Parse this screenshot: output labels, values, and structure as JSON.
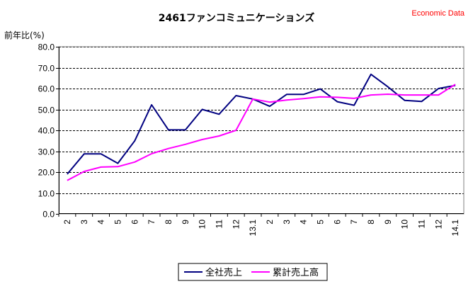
{
  "chart_data": {
    "type": "line",
    "title": "2461ファンコミュニケーションズ",
    "source_label": "Economic Data",
    "ylabel": "前年比(%)",
    "ylim": [
      0,
      80
    ],
    "yticks": [
      "0.0",
      "10.0",
      "20.0",
      "30.0",
      "40.0",
      "50.0",
      "60.0",
      "70.0",
      "80.0"
    ],
    "grid": true,
    "legend_position": "bottom",
    "categories": [
      "2",
      "3",
      "4",
      "5",
      "6",
      "7",
      "8",
      "9",
      "10",
      "11",
      "12",
      "13.1",
      "2",
      "3",
      "4",
      "5",
      "6",
      "7",
      "8",
      "9",
      "10",
      "11",
      "12",
      "14.1"
    ],
    "series": [
      {
        "name": "全社売上",
        "color": "#000080",
        "values": [
          19.0,
          28.7,
          28.7,
          24.2,
          35.0,
          52.2,
          40.2,
          40.2,
          50.0,
          47.7,
          56.6,
          55.0,
          51.5,
          57.2,
          57.2,
          59.8,
          53.7,
          52.0,
          66.8,
          60.8,
          54.3,
          53.8,
          60.0,
          61.5
        ]
      },
      {
        "name": "累計売上高",
        "color": "#ff00ff",
        "values": [
          16.0,
          20.3,
          22.4,
          22.6,
          24.8,
          28.8,
          31.3,
          33.3,
          35.6,
          37.3,
          40.0,
          55.0,
          53.5,
          54.5,
          55.2,
          56.0,
          55.8,
          55.3,
          56.9,
          57.3,
          56.9,
          56.9,
          56.9,
          62.0
        ]
      }
    ]
  }
}
